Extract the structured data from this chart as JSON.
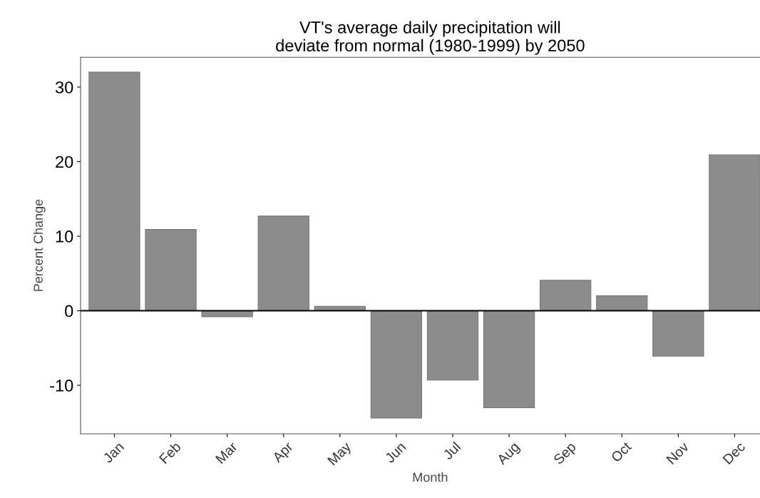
{
  "chart_data": {
    "type": "bar",
    "title": "VT's average daily precipitation will\ndeviate from normal (1980-1999) by 2050",
    "xlabel": "Month",
    "ylabel": "Percent Change",
    "categories": [
      "Jan",
      "Feb",
      "Mar",
      "Apr",
      "May",
      "Jun",
      "Jul",
      "Aug",
      "Sep",
      "Oct",
      "Nov",
      "Dec"
    ],
    "values": [
      32,
      10.9,
      -0.8,
      12.7,
      0.6,
      -14.4,
      -9.3,
      -13.0,
      4.1,
      2.0,
      -6.1,
      20.9
    ],
    "color": "#8c8c8c",
    "ylim": [
      -16.5,
      34
    ],
    "yticks": [
      -10,
      0,
      10,
      20,
      30
    ],
    "ref_lines": [
      {
        "axis": "y",
        "value": 0,
        "color": "#000000"
      }
    ]
  }
}
